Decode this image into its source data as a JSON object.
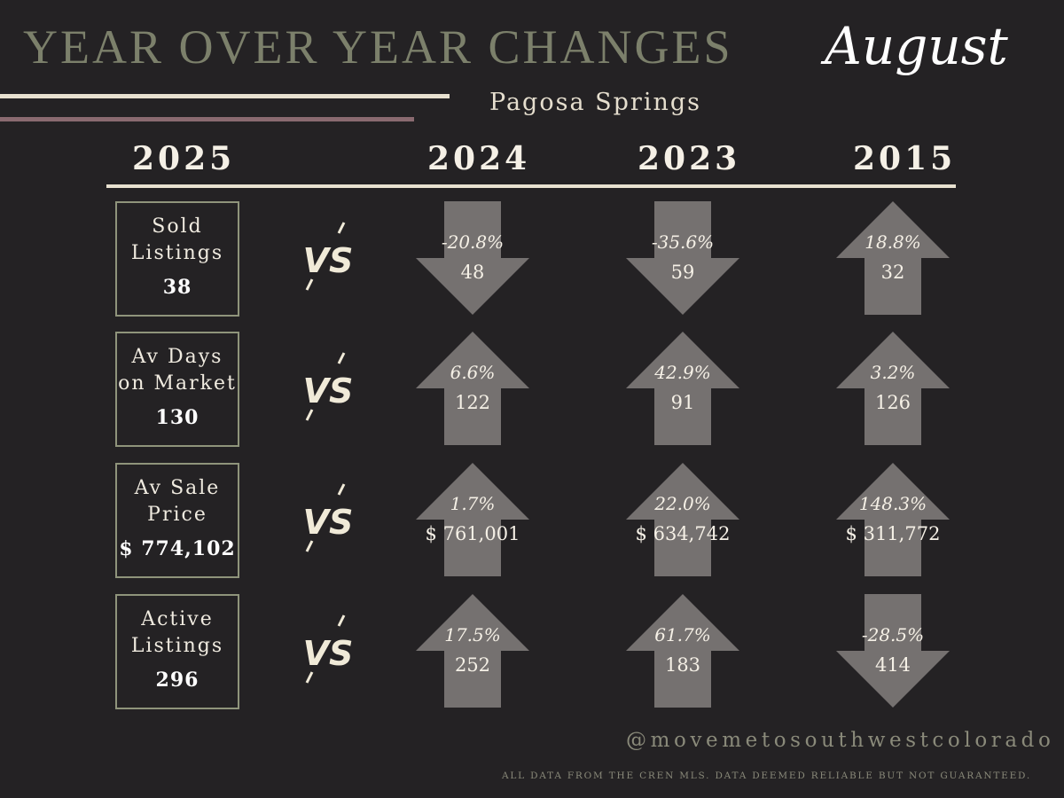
{
  "header": {
    "title": "YEAR OVER YEAR CHANGES",
    "month": "August",
    "subtitle": "Pagosa Springs"
  },
  "years": {
    "current": "2025",
    "compare": [
      "2024",
      "2023",
      "2015"
    ]
  },
  "vs_label": "VS",
  "metrics": [
    {
      "label": "Sold\nListings",
      "value": "38",
      "comparisons": [
        {
          "pct": "-20.8%",
          "value": "48",
          "direction": "down"
        },
        {
          "pct": "-35.6%",
          "value": "59",
          "direction": "down"
        },
        {
          "pct": "18.8%",
          "value": "32",
          "direction": "up"
        }
      ]
    },
    {
      "label": "Av Days\non Market",
      "value": "130",
      "comparisons": [
        {
          "pct": "6.6%",
          "value": "122",
          "direction": "up"
        },
        {
          "pct": "42.9%",
          "value": "91",
          "direction": "up"
        },
        {
          "pct": "3.2%",
          "value": "126",
          "direction": "up"
        }
      ]
    },
    {
      "label": "Av Sale\nPrice",
      "value": "$ 774,102",
      "comparisons": [
        {
          "pct": "1.7%",
          "value": "$ 761,001",
          "direction": "up"
        },
        {
          "pct": "22.0%",
          "value": "$ 634,742",
          "direction": "up"
        },
        {
          "pct": "148.3%",
          "value": "$ 311,772",
          "direction": "up"
        }
      ]
    },
    {
      "label": "Active\nListings",
      "value": "296",
      "comparisons": [
        {
          "pct": "17.5%",
          "value": "252",
          "direction": "up"
        },
        {
          "pct": "61.7%",
          "value": "183",
          "direction": "up"
        },
        {
          "pct": "-28.5%",
          "value": "414",
          "direction": "down"
        }
      ]
    }
  ],
  "colors": {
    "background": "#242224",
    "arrow": "#757170",
    "title": "#7c806b",
    "accent_line": "#8a6a70"
  },
  "footer": {
    "handle": "@movemetosouthwestcolorado",
    "disclaimer": "ALL DATA FROM THE CREN MLS. DATA DEEMED RELIABLE BUT NOT GUARANTEED."
  }
}
